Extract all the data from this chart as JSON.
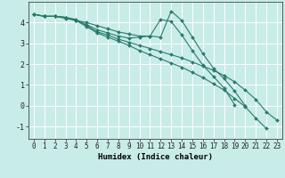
{
  "xlabel": "Humidex (Indice chaleur)",
  "background_color": "#c8ece8",
  "grid_color": "#ffffff",
  "line_color": "#2a7a6a",
  "xlim": [
    -0.5,
    23.5
  ],
  "ylim": [
    -1.6,
    5.0
  ],
  "xticks": [
    0,
    1,
    2,
    3,
    4,
    5,
    6,
    7,
    8,
    9,
    10,
    11,
    12,
    13,
    14,
    15,
    16,
    17,
    18,
    19,
    20,
    21,
    22,
    23
  ],
  "yticks": [
    -1,
    0,
    1,
    2,
    3,
    4
  ],
  "lines": [
    {
      "x": [
        0,
        1,
        2,
        3,
        4,
        5,
        6,
        7,
        8,
        9,
        10,
        11,
        12,
        13,
        14,
        15,
        16,
        17,
        18,
        19,
        20
      ],
      "y": [
        4.4,
        4.3,
        4.3,
        4.25,
        4.1,
        4.0,
        3.85,
        3.7,
        3.55,
        3.45,
        3.35,
        3.35,
        3.3,
        4.55,
        4.1,
        3.3,
        2.5,
        1.8,
        1.3,
        0.7,
        0.0
      ]
    },
    {
      "x": [
        0,
        1,
        2,
        3,
        4,
        5,
        6,
        7,
        8,
        9,
        10,
        11,
        12,
        13,
        14,
        15,
        16,
        17,
        18,
        19
      ],
      "y": [
        4.4,
        4.3,
        4.3,
        4.25,
        4.1,
        3.9,
        3.65,
        3.5,
        3.35,
        3.25,
        3.3,
        3.35,
        4.15,
        4.05,
        3.4,
        2.65,
        1.95,
        1.4,
        0.85,
        0.05
      ]
    },
    {
      "x": [
        0,
        1,
        2,
        3,
        4,
        5,
        6,
        7,
        8,
        9,
        10,
        11,
        12,
        13,
        14,
        15,
        16,
        17,
        18,
        19,
        20,
        21,
        22,
        23
      ],
      "y": [
        4.4,
        4.3,
        4.3,
        4.25,
        4.15,
        3.85,
        3.55,
        3.4,
        3.2,
        3.05,
        2.9,
        2.75,
        2.6,
        2.45,
        2.3,
        2.1,
        1.9,
        1.7,
        1.45,
        1.15,
        0.75,
        0.3,
        -0.3,
        -0.7
      ]
    },
    {
      "x": [
        0,
        1,
        2,
        3,
        4,
        5,
        6,
        7,
        8,
        9,
        10,
        11,
        12,
        13,
        14,
        15,
        16,
        17,
        18,
        19,
        20,
        21,
        22
      ],
      "y": [
        4.4,
        4.3,
        4.3,
        4.2,
        4.1,
        3.8,
        3.5,
        3.3,
        3.1,
        2.9,
        2.65,
        2.45,
        2.25,
        2.05,
        1.85,
        1.6,
        1.35,
        1.05,
        0.75,
        0.35,
        -0.05,
        -0.6,
        -1.1
      ]
    }
  ],
  "tick_fontsize": 5.5,
  "xlabel_fontsize": 6.5
}
